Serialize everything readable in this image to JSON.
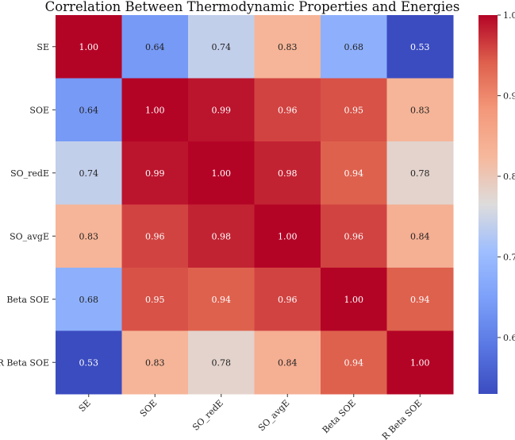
{
  "chart_data": {
    "type": "heatmap",
    "title": "Correlation Between Thermodynamic Properties and Energies",
    "rows": [
      "SE",
      "SOE",
      "SO_redE",
      "SO_avgE",
      "Beta SOE",
      "R Beta SOE"
    ],
    "columns": [
      "SE",
      "SOE",
      "SO_redE",
      "SO_avgE",
      "Beta SOE",
      "R Beta SOE"
    ],
    "values": [
      [
        1.0,
        0.64,
        0.74,
        0.83,
        0.68,
        0.53
      ],
      [
        0.64,
        1.0,
        0.99,
        0.96,
        0.95,
        0.83
      ],
      [
        0.74,
        0.99,
        1.0,
        0.98,
        0.94,
        0.78
      ],
      [
        0.83,
        0.96,
        0.98,
        1.0,
        0.96,
        0.84
      ],
      [
        0.68,
        0.95,
        0.94,
        0.96,
        1.0,
        0.94
      ],
      [
        0.53,
        0.83,
        0.78,
        0.84,
        0.94,
        1.0
      ]
    ],
    "value_format": "0.00",
    "colormap": "coolwarm",
    "vmin": 0.53,
    "vmax": 1.0,
    "colorbar": {
      "ticks": [
        0.6,
        0.7,
        0.8,
        0.9,
        1.0
      ],
      "tick_labels": [
        "0.6",
        "0.7",
        "0.8",
        "0.9",
        "1.0"
      ],
      "placement": "right"
    }
  }
}
